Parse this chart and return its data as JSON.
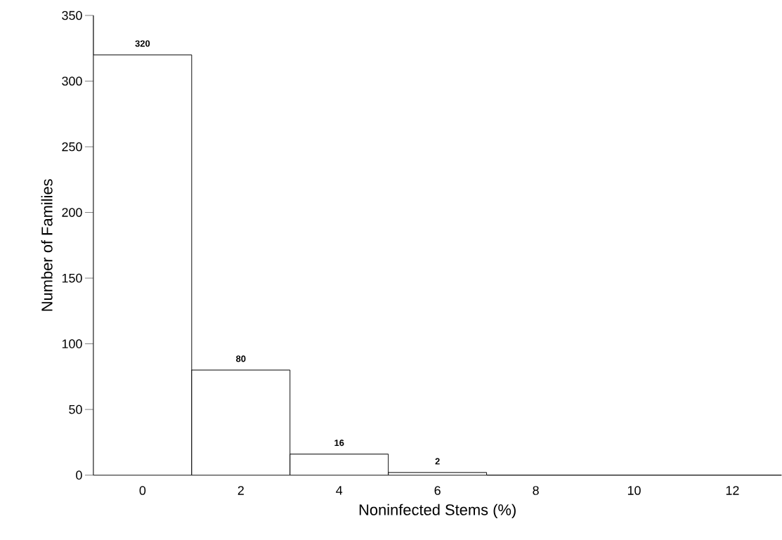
{
  "chart_data": {
    "type": "histogram",
    "xlabel": "Noninfected Stems (%)",
    "ylabel": "Number of Families",
    "bins": [
      -1,
      1,
      3,
      5,
      7
    ],
    "values": [
      320,
      80,
      16,
      2
    ],
    "color": "#000000",
    "xlim": [
      -1,
      13
    ],
    "ylim": [
      0,
      350
    ],
    "xticks": [
      0,
      2,
      4,
      6,
      8,
      10,
      12
    ],
    "yticks": [
      0,
      50,
      100,
      150,
      200,
      250,
      300,
      350
    ],
    "value_labels": [
      "320",
      "80",
      "16",
      "2"
    ]
  }
}
